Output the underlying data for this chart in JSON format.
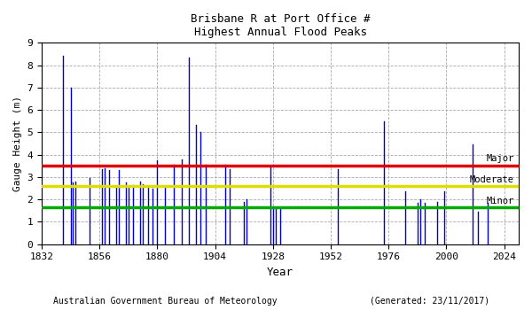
{
  "title_line1": "Brisbane R at Port Office #",
  "title_line2": "Highest Annual Flood Peaks",
  "xlabel": "Year",
  "ylabel": "Gauge Height (m)",
  "footer_left": "Australian Government Bureau of Meteorology",
  "footer_right": "(Generated: 23/11/2017)",
  "ylim": [
    0,
    9
  ],
  "xlim": [
    1832,
    2030
  ],
  "yticks": [
    0,
    1,
    2,
    3,
    4,
    5,
    6,
    7,
    8,
    9
  ],
  "xticks": [
    1832,
    1856,
    1880,
    1904,
    1928,
    1952,
    1976,
    2000,
    2024
  ],
  "major_flood_level": 3.5,
  "moderate_flood_level": 2.6,
  "minor_flood_level": 1.65,
  "bar_color": "#0000cc",
  "major_color": "#dd0000",
  "moderate_color": "#dddd00",
  "minor_color": "#00aa00",
  "flood_data": [
    [
      1841,
      8.43
    ],
    [
      1844,
      7.0
    ],
    [
      1845,
      2.75
    ],
    [
      1846,
      2.8
    ],
    [
      1852,
      2.95
    ],
    [
      1857,
      3.35
    ],
    [
      1858,
      3.4
    ],
    [
      1860,
      3.3
    ],
    [
      1863,
      2.55
    ],
    [
      1864,
      3.3
    ],
    [
      1867,
      2.75
    ],
    [
      1868,
      2.6
    ],
    [
      1870,
      2.65
    ],
    [
      1873,
      2.8
    ],
    [
      1874,
      2.7
    ],
    [
      1876,
      2.6
    ],
    [
      1878,
      2.5
    ],
    [
      1880,
      3.75
    ],
    [
      1883,
      2.55
    ],
    [
      1887,
      3.55
    ],
    [
      1890,
      3.8
    ],
    [
      1893,
      8.35
    ],
    [
      1896,
      5.35
    ],
    [
      1898,
      5.0
    ],
    [
      1900,
      3.55
    ],
    [
      1908,
      3.55
    ],
    [
      1910,
      3.35
    ],
    [
      1916,
      1.9
    ],
    [
      1917,
      2.0
    ],
    [
      1927,
      3.5
    ],
    [
      1928,
      1.7
    ],
    [
      1929,
      1.6
    ],
    [
      1931,
      1.6
    ],
    [
      1955,
      3.35
    ],
    [
      1974,
      5.5
    ],
    [
      1983,
      2.35
    ],
    [
      1988,
      1.85
    ],
    [
      1989,
      2.0
    ],
    [
      1991,
      1.85
    ],
    [
      1996,
      1.9
    ],
    [
      1999,
      2.35
    ],
    [
      2011,
      4.46
    ],
    [
      2013,
      1.45
    ],
    [
      2017,
      1.85
    ]
  ]
}
